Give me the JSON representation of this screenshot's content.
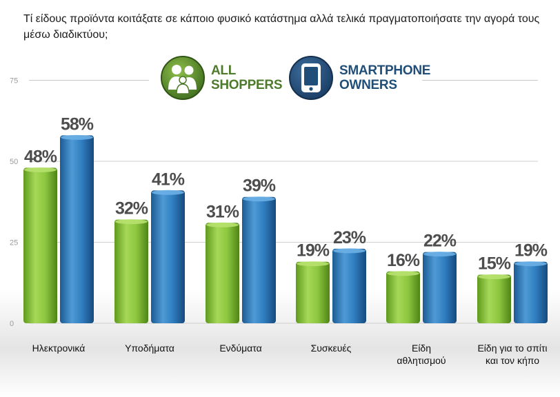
{
  "title": "Τί είδους προϊόντα κοιτάξατε σε κάποιο φυσικό κατάστημα αλλά τελικά πραγματοποιήσατε την αγορά τους μέσω διαδικτύου;",
  "legend": {
    "all_shoppers": {
      "line1": "ALL",
      "line2": "SHOPPERS",
      "icon": "people-icon",
      "color": "#4e7a2b"
    },
    "smartphone_owners": {
      "line1": "SMARTPHONE",
      "line2": "OWNERS",
      "icon": "smartphone-icon",
      "color": "#1f4e79"
    }
  },
  "chart_data": {
    "type": "bar",
    "title": "Τί είδους προϊόντα κοιτάξατε σε κάποιο φυσικό κατάστημα αλλά τελικά πραγματοποιήσατε την αγορά τους μέσω διαδικτύου;",
    "categories": [
      [
        "Ηλεκτρονικά"
      ],
      [
        "Υποδήματα"
      ],
      [
        "Ενδύματα"
      ],
      [
        "Συσκευές"
      ],
      [
        "Είδη",
        "αθλητισμού"
      ],
      [
        "Είδη για το σπίτι",
        "και τον κήπο"
      ]
    ],
    "series": [
      {
        "name": "ALL SHOPPERS",
        "values": [
          48,
          32,
          31,
          19,
          16,
          15
        ],
        "labels": [
          "48%",
          "32%",
          "31%",
          "19%",
          "16%",
          "15%"
        ],
        "color": "#8cc63f"
      },
      {
        "name": "SMARTPHONE OWNERS",
        "values": [
          58,
          41,
          39,
          23,
          22,
          19
        ],
        "labels": [
          "58%",
          "41%",
          "39%",
          "23%",
          "22%",
          "19%"
        ],
        "color": "#2f7dbf"
      }
    ],
    "yticks": [
      0,
      25,
      50,
      75
    ],
    "ytick_labels": [
      "0",
      "25",
      "50",
      "75"
    ],
    "ylim": [
      0,
      75
    ],
    "grid": true,
    "legend_position": "top-center"
  }
}
